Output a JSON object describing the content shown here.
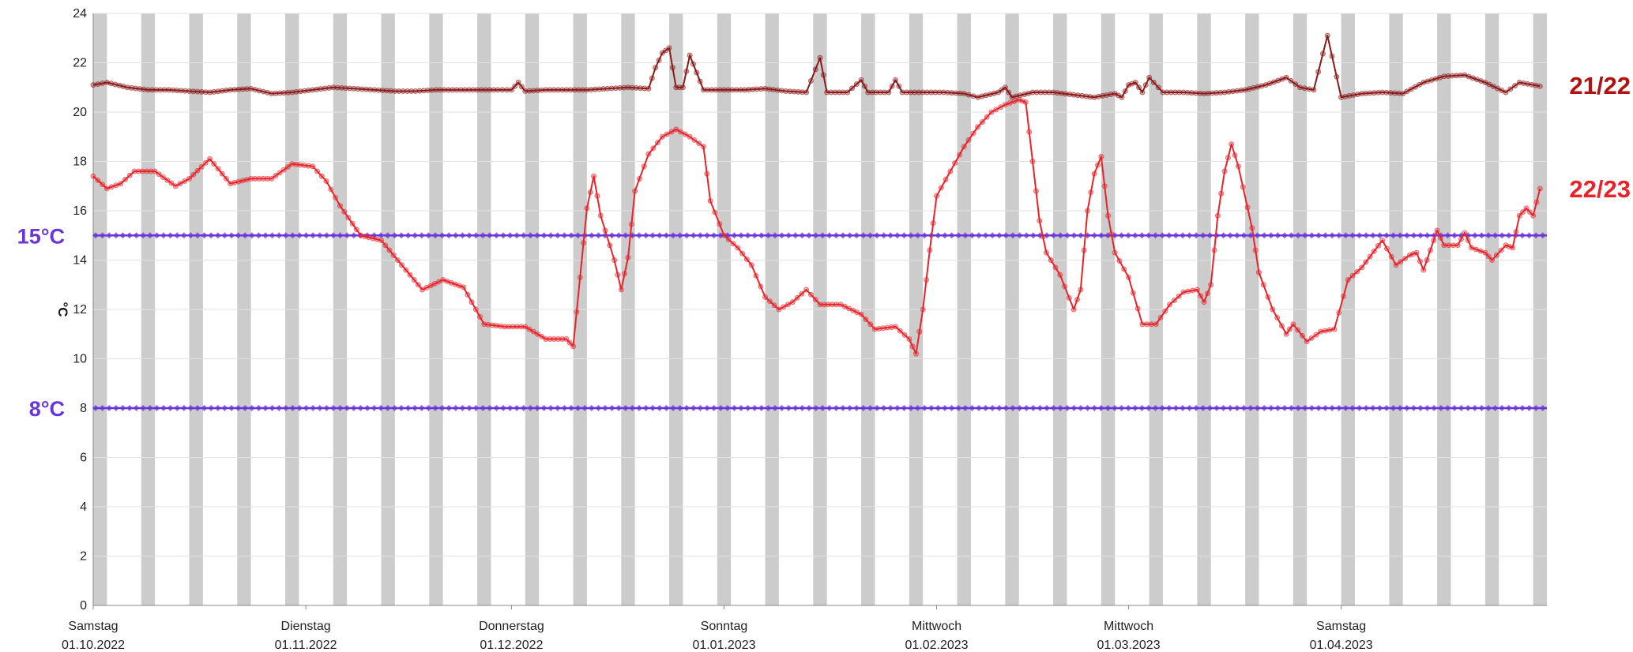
{
  "chart_data": {
    "type": "line",
    "ylabel": "°C",
    "ylim": [
      0,
      24
    ],
    "y_ticks": [
      "0",
      "2",
      "4",
      "6",
      "8",
      "10",
      "12",
      "14",
      "16",
      "18",
      "20",
      "22",
      "24"
    ],
    "x_range": [
      "2022-10-01",
      "2023-04-30"
    ],
    "x_ticks": [
      {
        "date": "2022-10-01",
        "weekday": "Samstag",
        "label": "01.10.2022"
      },
      {
        "date": "2022-11-01",
        "weekday": "Dienstag",
        "label": "01.11.2022"
      },
      {
        "date": "2022-12-01",
        "weekday": "Donnerstag",
        "label": "01.12.2022"
      },
      {
        "date": "2023-01-01",
        "weekday": "Sonntag",
        "label": "01.01.2023"
      },
      {
        "date": "2023-02-01",
        "weekday": "Mittwoch",
        "label": "01.02.2023"
      },
      {
        "date": "2023-03-01",
        "weekday": "Mittwoch",
        "label": "01.03.2023"
      },
      {
        "date": "2023-04-01",
        "weekday": "Samstag",
        "label": "01.04.2023"
      }
    ],
    "grid": "vertical weekend bands (grey), horizontal gridlines",
    "band_color": "#cccccc",
    "reference_lines": [
      {
        "label": "15°C",
        "value": 15,
        "color": "#6a35d9"
      },
      {
        "label": "8°C",
        "value": 8,
        "color": "#6a35d9"
      }
    ],
    "series": [
      {
        "name": "21/22",
        "color": "#8b1a1a",
        "points": [
          [
            "2022-10-01",
            21.1
          ],
          [
            "2022-10-03",
            21.2
          ],
          [
            "2022-10-06",
            21.0
          ],
          [
            "2022-10-09",
            20.9
          ],
          [
            "2022-10-12",
            20.9
          ],
          [
            "2022-10-15",
            20.85
          ],
          [
            "2022-10-18",
            20.8
          ],
          [
            "2022-10-21",
            20.9
          ],
          [
            "2022-10-24",
            20.95
          ],
          [
            "2022-10-27",
            20.75
          ],
          [
            "2022-10-30",
            20.8
          ],
          [
            "2022-11-02",
            20.9
          ],
          [
            "2022-11-05",
            21.0
          ],
          [
            "2022-11-08",
            20.95
          ],
          [
            "2022-11-11",
            20.9
          ],
          [
            "2022-11-14",
            20.85
          ],
          [
            "2022-11-17",
            20.85
          ],
          [
            "2022-11-20",
            20.9
          ],
          [
            "2022-11-23",
            20.9
          ],
          [
            "2022-11-26",
            20.9
          ],
          [
            "2022-11-29",
            20.9
          ],
          [
            "2022-12-01",
            20.9
          ],
          [
            "2022-12-02",
            21.2
          ],
          [
            "2022-12-03",
            20.85
          ],
          [
            "2022-12-06",
            20.9
          ],
          [
            "2022-12-09",
            20.9
          ],
          [
            "2022-12-12",
            20.9
          ],
          [
            "2022-12-15",
            20.95
          ],
          [
            "2022-12-18",
            21.0
          ],
          [
            "2022-12-21",
            20.95
          ],
          [
            "2022-12-22",
            21.8
          ],
          [
            "2022-12-23",
            22.4
          ],
          [
            "2022-12-24",
            22.6
          ],
          [
            "2022-12-25",
            21.0
          ],
          [
            "2022-12-26",
            21.0
          ],
          [
            "2022-12-27",
            22.3
          ],
          [
            "2022-12-28",
            21.6
          ],
          [
            "2022-12-29",
            20.9
          ],
          [
            "2023-01-01",
            20.9
          ],
          [
            "2023-01-04",
            20.9
          ],
          [
            "2023-01-07",
            20.95
          ],
          [
            "2023-01-10",
            20.85
          ],
          [
            "2023-01-13",
            20.8
          ],
          [
            "2023-01-15",
            22.2
          ],
          [
            "2023-01-16",
            20.8
          ],
          [
            "2023-01-19",
            20.8
          ],
          [
            "2023-01-21",
            21.3
          ],
          [
            "2023-01-22",
            20.8
          ],
          [
            "2023-01-25",
            20.8
          ],
          [
            "2023-01-26",
            21.3
          ],
          [
            "2023-01-27",
            20.8
          ],
          [
            "2023-01-30",
            20.8
          ],
          [
            "2023-02-02",
            20.8
          ],
          [
            "2023-02-05",
            20.75
          ],
          [
            "2023-02-07",
            20.6
          ],
          [
            "2023-02-10",
            20.8
          ],
          [
            "2023-02-11",
            21.0
          ],
          [
            "2023-02-12",
            20.6
          ],
          [
            "2023-02-15",
            20.8
          ],
          [
            "2023-02-18",
            20.8
          ],
          [
            "2023-02-21",
            20.7
          ],
          [
            "2023-02-24",
            20.6
          ],
          [
            "2023-02-27",
            20.75
          ],
          [
            "2023-02-28",
            20.6
          ],
          [
            "2023-03-01",
            21.1
          ],
          [
            "2023-03-02",
            21.2
          ],
          [
            "2023-03-03",
            20.8
          ],
          [
            "2023-03-04",
            21.4
          ],
          [
            "2023-03-06",
            20.8
          ],
          [
            "2023-03-09",
            20.8
          ],
          [
            "2023-03-12",
            20.75
          ],
          [
            "2023-03-15",
            20.8
          ],
          [
            "2023-03-18",
            20.9
          ],
          [
            "2023-03-21",
            21.1
          ],
          [
            "2023-03-24",
            21.4
          ],
          [
            "2023-03-26",
            21.0
          ],
          [
            "2023-03-28",
            20.9
          ],
          [
            "2023-03-30",
            23.1
          ],
          [
            "2023-04-01",
            20.6
          ],
          [
            "2023-04-04",
            20.75
          ],
          [
            "2023-04-07",
            20.8
          ],
          [
            "2023-04-10",
            20.75
          ],
          [
            "2023-04-13",
            21.2
          ],
          [
            "2023-04-16",
            21.45
          ],
          [
            "2023-04-19",
            21.5
          ],
          [
            "2023-04-22",
            21.2
          ],
          [
            "2023-04-25",
            20.8
          ],
          [
            "2023-04-27",
            21.2
          ],
          [
            "2023-04-30",
            21.05
          ]
        ]
      },
      {
        "name": "22/23",
        "color": "#e8232a",
        "points": [
          [
            "2022-10-01",
            17.4
          ],
          [
            "2022-10-03",
            16.9
          ],
          [
            "2022-10-05",
            17.1
          ],
          [
            "2022-10-07",
            17.6
          ],
          [
            "2022-10-10",
            17.6
          ],
          [
            "2022-10-13",
            17.0
          ],
          [
            "2022-10-15",
            17.3
          ],
          [
            "2022-10-18",
            18.1
          ],
          [
            "2022-10-21",
            17.1
          ],
          [
            "2022-10-24",
            17.3
          ],
          [
            "2022-10-27",
            17.3
          ],
          [
            "2022-10-30",
            17.9
          ],
          [
            "2022-11-02",
            17.8
          ],
          [
            "2022-11-04",
            17.2
          ],
          [
            "2022-11-06",
            16.2
          ],
          [
            "2022-11-09",
            15.0
          ],
          [
            "2022-11-12",
            14.8
          ],
          [
            "2022-11-15",
            13.8
          ],
          [
            "2022-11-18",
            12.8
          ],
          [
            "2022-11-21",
            13.2
          ],
          [
            "2022-11-24",
            12.9
          ],
          [
            "2022-11-27",
            11.4
          ],
          [
            "2022-11-30",
            11.3
          ],
          [
            "2022-12-03",
            11.3
          ],
          [
            "2022-12-06",
            10.8
          ],
          [
            "2022-12-09",
            10.8
          ],
          [
            "2022-12-10",
            10.5
          ],
          [
            "2022-12-11",
            13.3
          ],
          [
            "2022-12-12",
            16.1
          ],
          [
            "2022-12-13",
            17.4
          ],
          [
            "2022-12-14",
            15.8
          ],
          [
            "2022-12-16",
            14.0
          ],
          [
            "2022-12-17",
            12.8
          ],
          [
            "2022-12-18",
            14.1
          ],
          [
            "2022-12-19",
            16.8
          ],
          [
            "2022-12-21",
            18.3
          ],
          [
            "2022-12-23",
            19.0
          ],
          [
            "2022-12-25",
            19.3
          ],
          [
            "2022-12-27",
            19.0
          ],
          [
            "2022-12-29",
            18.6
          ],
          [
            "2022-12-30",
            16.4
          ],
          [
            "2023-01-01",
            15.0
          ],
          [
            "2023-01-03",
            14.5
          ],
          [
            "2023-01-05",
            13.8
          ],
          [
            "2023-01-07",
            12.5
          ],
          [
            "2023-01-09",
            12.0
          ],
          [
            "2023-01-11",
            12.3
          ],
          [
            "2023-01-13",
            12.8
          ],
          [
            "2023-01-15",
            12.2
          ],
          [
            "2023-01-18",
            12.2
          ],
          [
            "2023-01-21",
            11.8
          ],
          [
            "2023-01-23",
            11.2
          ],
          [
            "2023-01-26",
            11.3
          ],
          [
            "2023-01-28",
            10.8
          ],
          [
            "2023-01-29",
            10.2
          ],
          [
            "2023-01-30",
            12.0
          ],
          [
            "2023-01-31",
            14.4
          ],
          [
            "2023-02-01",
            16.6
          ],
          [
            "2023-02-03",
            17.6
          ],
          [
            "2023-02-05",
            18.6
          ],
          [
            "2023-02-07",
            19.4
          ],
          [
            "2023-02-09",
            20.0
          ],
          [
            "2023-02-11",
            20.3
          ],
          [
            "2023-02-13",
            20.5
          ],
          [
            "2023-02-14",
            20.4
          ],
          [
            "2023-02-15",
            18.0
          ],
          [
            "2023-02-16",
            15.6
          ],
          [
            "2023-02-17",
            14.3
          ],
          [
            "2023-02-19",
            13.4
          ],
          [
            "2023-02-21",
            12.0
          ],
          [
            "2023-02-22",
            12.8
          ],
          [
            "2023-02-23",
            16.0
          ],
          [
            "2023-02-24",
            17.5
          ],
          [
            "2023-02-25",
            18.2
          ],
          [
            "2023-02-26",
            15.8
          ],
          [
            "2023-02-27",
            14.3
          ],
          [
            "2023-03-01",
            13.3
          ],
          [
            "2023-03-03",
            11.4
          ],
          [
            "2023-03-05",
            11.4
          ],
          [
            "2023-03-07",
            12.2
          ],
          [
            "2023-03-09",
            12.7
          ],
          [
            "2023-03-11",
            12.8
          ],
          [
            "2023-03-12",
            12.3
          ],
          [
            "2023-03-13",
            13.0
          ],
          [
            "2023-03-14",
            15.8
          ],
          [
            "2023-03-15",
            17.6
          ],
          [
            "2023-03-16",
            18.7
          ],
          [
            "2023-03-17",
            17.8
          ],
          [
            "2023-03-19",
            15.3
          ],
          [
            "2023-03-20",
            13.5
          ],
          [
            "2023-03-22",
            12.0
          ],
          [
            "2023-03-24",
            11.0
          ],
          [
            "2023-03-25",
            11.4
          ],
          [
            "2023-03-27",
            10.7
          ],
          [
            "2023-03-29",
            11.1
          ],
          [
            "2023-03-31",
            11.2
          ],
          [
            "2023-04-02",
            13.2
          ],
          [
            "2023-04-04",
            13.7
          ],
          [
            "2023-04-07",
            14.8
          ],
          [
            "2023-04-09",
            13.8
          ],
          [
            "2023-04-11",
            14.2
          ],
          [
            "2023-04-12",
            14.3
          ],
          [
            "2023-04-13",
            13.6
          ],
          [
            "2023-04-14",
            14.4
          ],
          [
            "2023-04-15",
            15.2
          ],
          [
            "2023-04-16",
            14.6
          ],
          [
            "2023-04-18",
            14.6
          ],
          [
            "2023-04-19",
            15.1
          ],
          [
            "2023-04-20",
            14.5
          ],
          [
            "2023-04-22",
            14.3
          ],
          [
            "2023-04-23",
            14.0
          ],
          [
            "2023-04-25",
            14.6
          ],
          [
            "2023-04-26",
            14.5
          ],
          [
            "2023-04-27",
            15.8
          ],
          [
            "2023-04-28",
            16.1
          ],
          [
            "2023-04-29",
            15.8
          ],
          [
            "2023-04-30",
            16.9
          ]
        ]
      }
    ]
  }
}
